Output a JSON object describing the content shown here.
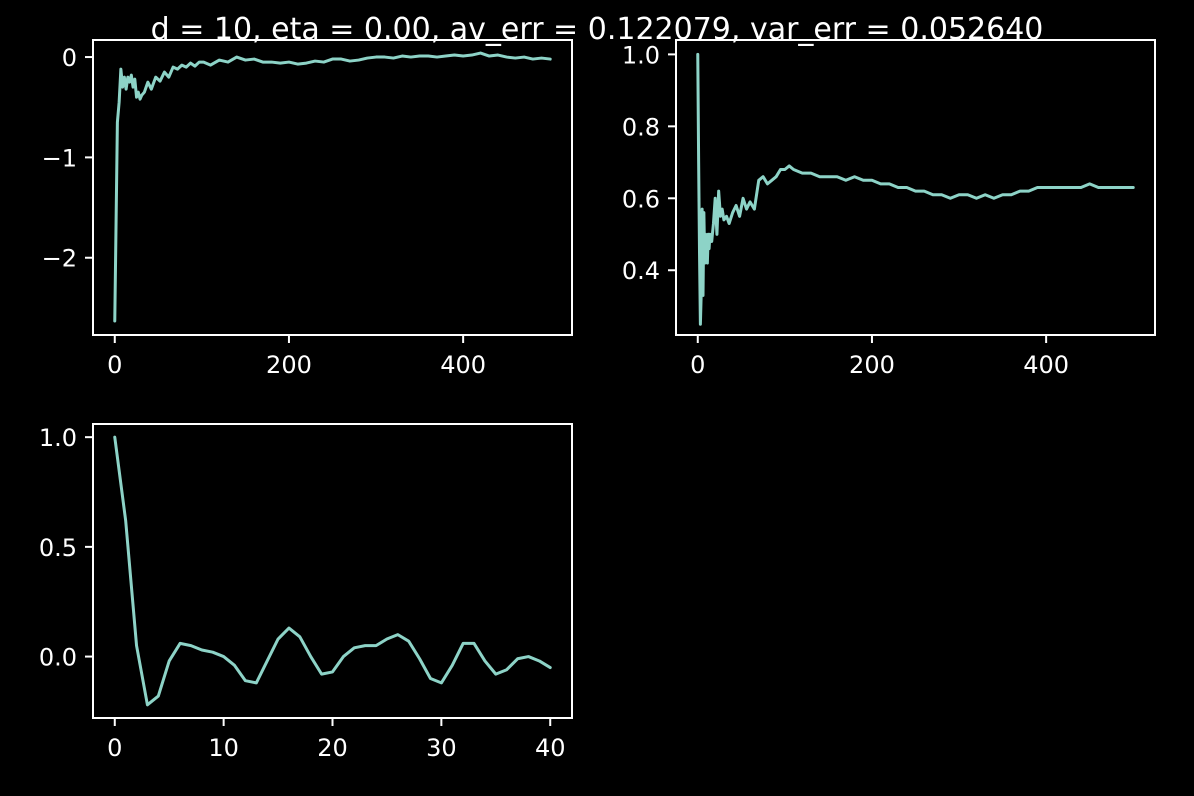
{
  "figure": {
    "title": "d = 10, eta = 0.00, av_err = 0.122079, var_err = 0.052640",
    "background": "#000000",
    "foreground": "#ffffff",
    "line_color": "#8dd3c7"
  },
  "chart_data": [
    {
      "type": "line",
      "title": "",
      "xlabel": "",
      "ylabel": "",
      "xlim": [
        -25,
        525
      ],
      "ylim": [
        -2.77,
        0.17
      ],
      "xticks": [
        0,
        200,
        400
      ],
      "xtick_labels": [
        "0",
        "200",
        "400"
      ],
      "yticks": [
        0,
        -1,
        -2
      ],
      "ytick_labels": [
        "0",
        "−1",
        "−2"
      ],
      "series": [
        {
          "x": [
            0,
            3,
            5,
            7,
            9,
            11,
            13,
            15,
            17,
            19,
            21,
            23,
            25,
            27,
            29,
            31,
            34,
            38,
            42,
            47,
            52,
            57,
            62,
            67,
            72,
            77,
            82,
            87,
            92,
            97,
            102,
            110,
            120,
            130,
            140,
            150,
            160,
            170,
            180,
            190,
            200,
            210,
            220,
            230,
            240,
            250,
            260,
            270,
            280,
            290,
            300,
            310,
            320,
            330,
            340,
            350,
            360,
            370,
            380,
            390,
            400,
            410,
            420,
            430,
            440,
            450,
            460,
            470,
            480,
            490,
            500
          ],
          "values": [
            -2.63,
            -0.65,
            -0.45,
            -0.12,
            -0.3,
            -0.2,
            -0.32,
            -0.2,
            -0.25,
            -0.18,
            -0.3,
            -0.22,
            -0.4,
            -0.35,
            -0.42,
            -0.38,
            -0.35,
            -0.25,
            -0.32,
            -0.2,
            -0.24,
            -0.15,
            -0.2,
            -0.1,
            -0.12,
            -0.08,
            -0.1,
            -0.06,
            -0.09,
            -0.05,
            -0.05,
            -0.08,
            -0.03,
            -0.05,
            0.0,
            -0.03,
            -0.02,
            -0.05,
            -0.05,
            -0.06,
            -0.05,
            -0.07,
            -0.06,
            -0.04,
            -0.05,
            -0.02,
            -0.02,
            -0.04,
            -0.03,
            -0.01,
            0.0,
            0.0,
            -0.01,
            0.01,
            0.0,
            0.01,
            0.01,
            0.0,
            0.01,
            0.02,
            0.01,
            0.02,
            0.04,
            0.01,
            0.02,
            0.0,
            -0.01,
            0.0,
            -0.02,
            -0.01,
            -0.02
          ]
        }
      ]
    },
    {
      "type": "line",
      "title": "",
      "xlabel": "",
      "ylabel": "",
      "xlim": [
        -25,
        525
      ],
      "ylim": [
        0.22,
        1.04
      ],
      "xticks": [
        0,
        200,
        400
      ],
      "xtick_labels": [
        "0",
        "200",
        "400"
      ],
      "yticks": [
        1.0,
        0.8,
        0.6,
        0.4
      ],
      "ytick_labels": [
        "1.0",
        "0.8",
        "0.6",
        "0.4"
      ],
      "series": [
        {
          "x": [
            0,
            1,
            2,
            3,
            4,
            5,
            6,
            7,
            8,
            9,
            10,
            11,
            12,
            13,
            14,
            16,
            18,
            20,
            22,
            24,
            26,
            28,
            30,
            33,
            36,
            40,
            44,
            48,
            52,
            56,
            60,
            65,
            70,
            75,
            80,
            85,
            90,
            95,
            100,
            105,
            110,
            120,
            130,
            140,
            150,
            160,
            170,
            180,
            190,
            200,
            210,
            220,
            230,
            240,
            250,
            260,
            270,
            280,
            290,
            300,
            310,
            320,
            330,
            340,
            350,
            360,
            370,
            380,
            390,
            400,
            410,
            420,
            430,
            440,
            450,
            460,
            470,
            480,
            490,
            500
          ],
          "values": [
            1.0,
            0.7,
            0.45,
            0.25,
            0.34,
            0.57,
            0.33,
            0.56,
            0.42,
            0.5,
            0.45,
            0.42,
            0.5,
            0.46,
            0.5,
            0.48,
            0.53,
            0.6,
            0.5,
            0.62,
            0.55,
            0.57,
            0.54,
            0.55,
            0.53,
            0.56,
            0.58,
            0.55,
            0.6,
            0.57,
            0.59,
            0.57,
            0.65,
            0.66,
            0.64,
            0.65,
            0.66,
            0.68,
            0.68,
            0.69,
            0.68,
            0.67,
            0.67,
            0.66,
            0.66,
            0.66,
            0.65,
            0.66,
            0.65,
            0.65,
            0.64,
            0.64,
            0.63,
            0.63,
            0.62,
            0.62,
            0.61,
            0.61,
            0.6,
            0.61,
            0.61,
            0.6,
            0.61,
            0.6,
            0.61,
            0.61,
            0.62,
            0.62,
            0.63,
            0.63,
            0.63,
            0.63,
            0.63,
            0.63,
            0.64,
            0.63,
            0.63,
            0.63,
            0.63,
            0.63
          ]
        }
      ]
    },
    {
      "type": "line",
      "title": "",
      "xlabel": "",
      "ylabel": "",
      "xlim": [
        -2,
        42
      ],
      "ylim": [
        -0.28,
        1.06
      ],
      "xticks": [
        0,
        10,
        20,
        30,
        40
      ],
      "xtick_labels": [
        "0",
        "10",
        "20",
        "30",
        "40"
      ],
      "yticks": [
        1.0,
        0.5,
        0.0
      ],
      "ytick_labels": [
        "1.0",
        "0.5",
        "0.0"
      ],
      "series": [
        {
          "x": [
            0,
            1,
            2,
            3,
            4,
            5,
            6,
            7,
            8,
            9,
            10,
            11,
            12,
            13,
            14,
            15,
            16,
            17,
            18,
            19,
            20,
            21,
            22,
            23,
            24,
            25,
            26,
            27,
            28,
            29,
            30,
            31,
            32,
            33,
            34,
            35,
            36,
            37,
            38,
            39,
            40
          ],
          "values": [
            1.0,
            0.62,
            0.05,
            -0.22,
            -0.18,
            -0.02,
            0.06,
            0.05,
            0.03,
            0.02,
            0.0,
            -0.04,
            -0.11,
            -0.12,
            -0.02,
            0.08,
            0.13,
            0.09,
            0.0,
            -0.08,
            -0.07,
            0.0,
            0.04,
            0.05,
            0.05,
            0.08,
            0.1,
            0.07,
            -0.01,
            -0.1,
            -0.12,
            -0.04,
            0.06,
            0.06,
            -0.02,
            -0.08,
            -0.06,
            -0.01,
            0.0,
            -0.02,
            -0.05
          ]
        }
      ]
    }
  ]
}
